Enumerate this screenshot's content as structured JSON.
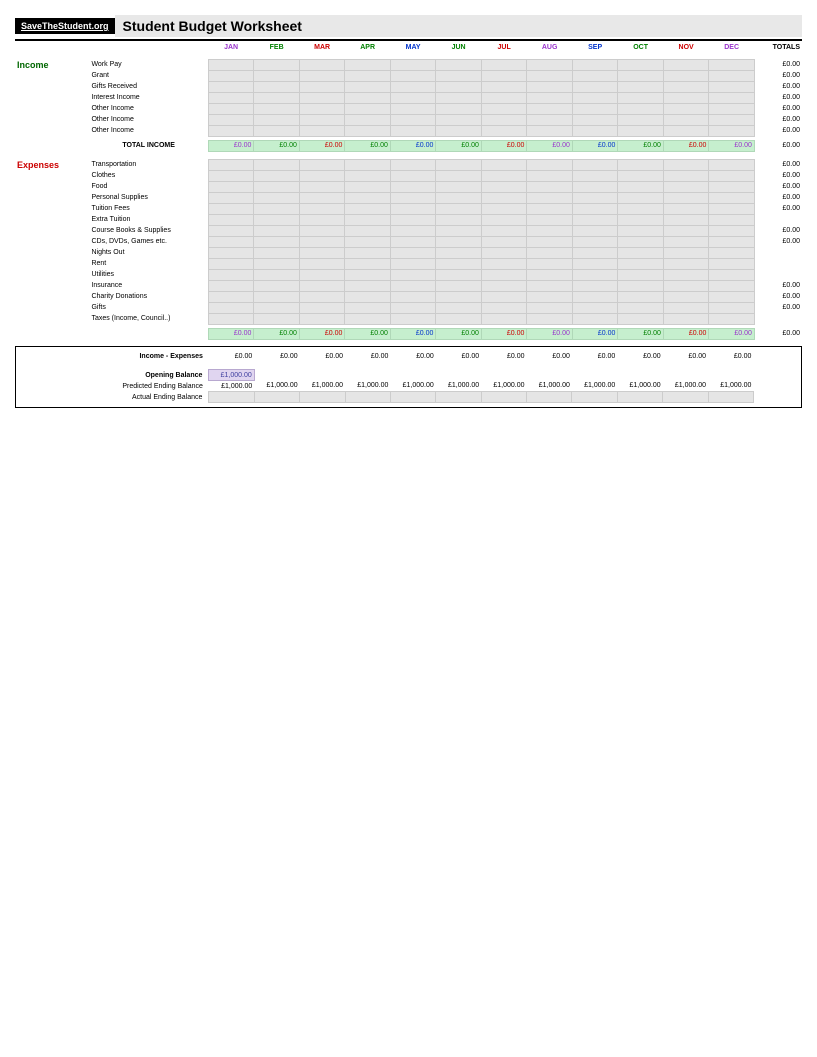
{
  "header": {
    "site": "SaveTheStudent.org",
    "title": "Student Budget Worksheet"
  },
  "months": [
    {
      "label": "JAN",
      "color": "#9933cc"
    },
    {
      "label": "FEB",
      "color": "#008000"
    },
    {
      "label": "MAR",
      "color": "#cc0000"
    },
    {
      "label": "APR",
      "color": "#008000"
    },
    {
      "label": "MAY",
      "color": "#0033cc"
    },
    {
      "label": "JUN",
      "color": "#008000"
    },
    {
      "label": "JUL",
      "color": "#cc0000"
    },
    {
      "label": "AUG",
      "color": "#9933cc"
    },
    {
      "label": "SEP",
      "color": "#0033cc"
    },
    {
      "label": "OCT",
      "color": "#008000"
    },
    {
      "label": "NOV",
      "color": "#cc0000"
    },
    {
      "label": "DEC",
      "color": "#9933cc"
    }
  ],
  "totals_header": "TOTALS",
  "income": {
    "section_label": "Income",
    "section_color": "#006600",
    "rows": [
      {
        "label": "Work Pay",
        "total": "£0.00"
      },
      {
        "label": "Grant",
        "total": "£0.00"
      },
      {
        "label": "Gifts Received",
        "total": "£0.00"
      },
      {
        "label": "Interest Income",
        "total": "£0.00"
      },
      {
        "label": "Other Income",
        "total": "£0.00"
      },
      {
        "label": "Other Income",
        "total": "£0.00"
      },
      {
        "label": "Other Income",
        "total": "£0.00"
      }
    ],
    "total_label": "TOTAL INCOME",
    "total_values": [
      "£0.00",
      "£0.00",
      "£0.00",
      "£0.00",
      "£0.00",
      "£0.00",
      "£0.00",
      "£0.00",
      "£0.00",
      "£0.00",
      "£0.00",
      "£0.00"
    ],
    "total_total": "£0.00"
  },
  "expenses": {
    "section_label": "Expenses",
    "section_color": "#cc0000",
    "rows": [
      {
        "label": "Transportation",
        "total": "£0.00"
      },
      {
        "label": "Clothes",
        "total": "£0.00"
      },
      {
        "label": "Food",
        "total": "£0.00"
      },
      {
        "label": "Personal Supplies",
        "total": "£0.00"
      },
      {
        "label": "Tuition Fees",
        "total": "£0.00"
      },
      {
        "label": "Extra Tuition",
        "total": ""
      },
      {
        "label": "Course Books & Supplies",
        "total": "£0.00"
      },
      {
        "label": "CDs, DVDs, Games etc.",
        "total": "£0.00"
      },
      {
        "label": "Nights Out",
        "total": ""
      },
      {
        "label": "Rent",
        "total": ""
      },
      {
        "label": "Utilities",
        "total": ""
      },
      {
        "label": "Insurance",
        "total": "£0.00"
      },
      {
        "label": "Charity Donations",
        "total": "£0.00"
      },
      {
        "label": "Gifts",
        "total": "£0.00"
      },
      {
        "label": "Taxes (Income, Council..)",
        "total": ""
      }
    ],
    "total_values": [
      "£0.00",
      "£0.00",
      "£0.00",
      "£0.00",
      "£0.00",
      "£0.00",
      "£0.00",
      "£0.00",
      "£0.00",
      "£0.00",
      "£0.00",
      "£0.00"
    ],
    "total_total": "£0.00"
  },
  "summary": {
    "net_label": "Income - Expenses",
    "net_values": [
      "£0.00",
      "£0.00",
      "£0.00",
      "£0.00",
      "£0.00",
      "£0.00",
      "£0.00",
      "£0.00",
      "£0.00",
      "£0.00",
      "£0.00",
      "£0.00"
    ],
    "opening_label": "Opening Balance",
    "opening_value": "£1,000.00",
    "predicted_label": "Predicted Ending Balance",
    "predicted_values": [
      "£1,000.00",
      "£1,000.00",
      "£1,000.00",
      "£1,000.00",
      "£1,000.00",
      "£1,000.00",
      "£1,000.00",
      "£1,000.00",
      "£1,000.00",
      "£1,000.00",
      "£1,000.00",
      "£1,000.00"
    ],
    "actual_label": "Actual Ending Balance"
  },
  "style": {
    "grey_bg": "#e5e5e5",
    "green_bg": "#c6efce",
    "opening_bg": "#e0d5f0"
  }
}
